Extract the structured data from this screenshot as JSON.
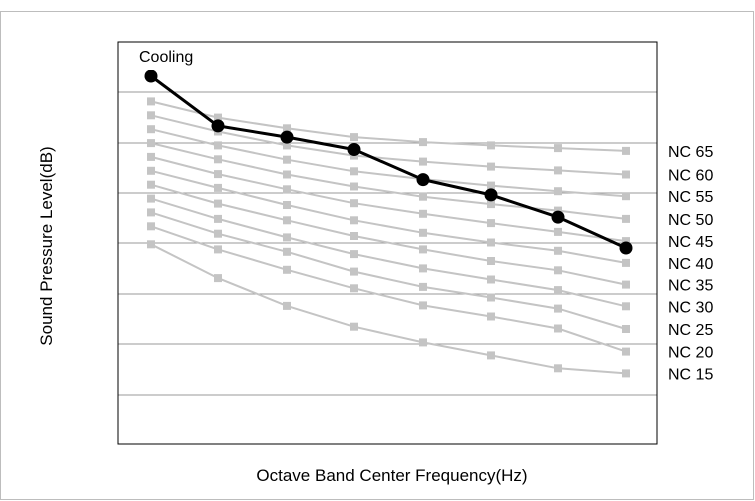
{
  "chart_data": {
    "type": "line",
    "title": "",
    "xlabel": "Octave Band Center Frequency(Hz)",
    "ylabel": "Sound Pressure Level(dB)",
    "grid": true,
    "ylim": [
      0,
      8
    ],
    "x": [
      1,
      2,
      3,
      4,
      5,
      6,
      7,
      8
    ],
    "nc_curves": [
      {
        "name": "NC 65",
        "values": [
          7.45,
          7.1,
          6.87,
          6.68,
          6.57,
          6.5,
          6.44,
          6.38
        ]
      },
      {
        "name": "NC 60",
        "values": [
          7.15,
          6.8,
          6.5,
          6.28,
          6.15,
          6.04,
          5.96,
          5.87
        ]
      },
      {
        "name": "NC 55",
        "values": [
          6.85,
          6.5,
          6.19,
          5.94,
          5.77,
          5.63,
          5.51,
          5.4
        ]
      },
      {
        "name": "NC 50",
        "values": [
          6.55,
          6.2,
          5.87,
          5.61,
          5.39,
          5.23,
          5.09,
          4.91
        ]
      },
      {
        "name": "NC 45",
        "values": [
          6.25,
          5.88,
          5.55,
          5.25,
          5.02,
          4.82,
          4.63,
          4.43
        ]
      },
      {
        "name": "NC 40",
        "values": [
          5.95,
          5.58,
          5.21,
          4.88,
          4.61,
          4.4,
          4.22,
          3.96
        ]
      },
      {
        "name": "NC 35",
        "values": [
          5.65,
          5.24,
          4.88,
          4.54,
          4.25,
          4.0,
          3.8,
          3.49
        ]
      },
      {
        "name": "NC 30",
        "values": [
          5.35,
          4.91,
          4.51,
          4.15,
          3.84,
          3.6,
          3.37,
          3.02
        ]
      },
      {
        "name": "NC 25",
        "values": [
          5.05,
          4.59,
          4.2,
          3.77,
          3.44,
          3.21,
          2.97,
          2.53
        ]
      },
      {
        "name": "NC 20",
        "values": [
          4.75,
          4.25,
          3.81,
          3.41,
          3.04,
          2.8,
          2.54,
          2.04
        ]
      },
      {
        "name": "NC 15",
        "values": [
          4.36,
          3.63,
          3.03,
          2.58,
          2.24,
          1.96,
          1.68,
          1.57
        ]
      }
    ],
    "series": [
      {
        "name": "Cooling",
        "values": [
          8.0,
          6.92,
          6.68,
          6.41,
          5.76,
          5.43,
          4.95,
          4.28
        ]
      }
    ]
  }
}
